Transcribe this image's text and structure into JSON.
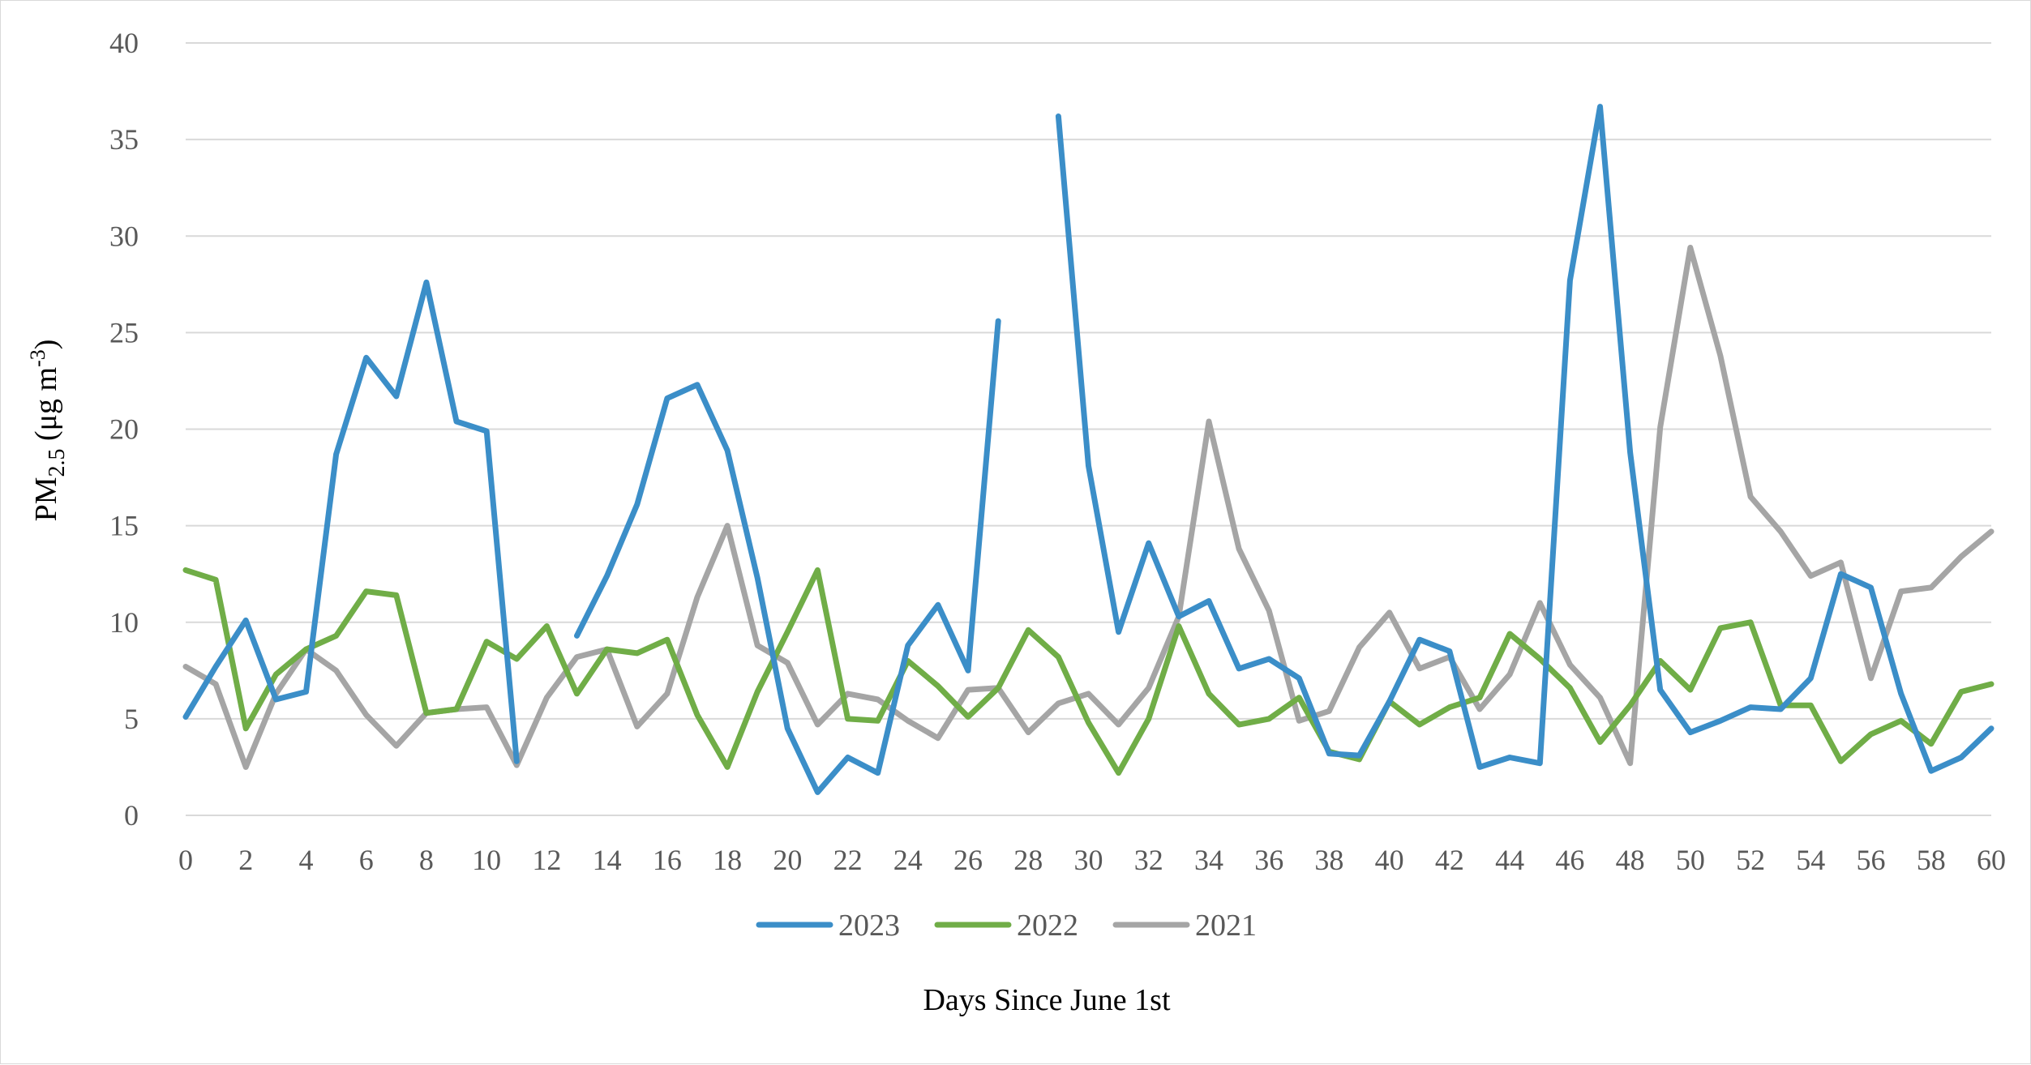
{
  "chart_data": {
    "type": "line",
    "title": "",
    "xlabel": "Days Since June 1st",
    "ylabel": "PM",
    "ylabel_sub": "2.5",
    "ylabel_units": " (μg m",
    "ylabel_sup": "-3",
    "ylabel_close": ")",
    "xlim": [
      0,
      60
    ],
    "ylim": [
      0,
      40
    ],
    "x_ticks": [
      "0",
      "2",
      "4",
      "6",
      "8",
      "10",
      "12",
      "14",
      "16",
      "18",
      "20",
      "22",
      "24",
      "26",
      "28",
      "30",
      "32",
      "34",
      "36",
      "38",
      "40",
      "42",
      "44",
      "46",
      "48",
      "50",
      "52",
      "54",
      "56",
      "58",
      "60"
    ],
    "y_ticks": [
      "0",
      "5",
      "10",
      "15",
      "20",
      "25",
      "30",
      "35",
      "40"
    ],
    "grid": true,
    "legend_position": "bottom",
    "series": [
      {
        "name": "2023",
        "color": "#3b8ec8",
        "x": [
          0,
          1,
          2,
          3,
          4,
          5,
          6,
          7,
          8,
          9,
          10,
          11,
          12,
          13,
          14,
          15,
          16,
          17,
          18,
          19,
          20,
          21,
          22,
          23,
          24,
          25,
          26,
          27,
          28,
          29,
          30,
          31,
          32,
          33,
          34,
          35,
          36,
          37,
          38,
          39,
          40,
          41,
          42,
          43,
          44,
          45,
          46,
          47,
          48,
          49,
          50,
          51,
          52,
          53,
          54,
          55,
          56,
          57,
          58,
          59,
          60
        ],
        "values": [
          5.1,
          7.7,
          10.1,
          6.0,
          6.4,
          18.7,
          23.7,
          21.7,
          27.6,
          20.4,
          19.9,
          2.8,
          null,
          9.3,
          12.4,
          16.1,
          21.6,
          22.3,
          18.9,
          12.3,
          4.5,
          1.2,
          3.0,
          2.2,
          8.8,
          10.9,
          7.5,
          25.6,
          null,
          36.2,
          18.1,
          9.5,
          14.1,
          10.3,
          11.1,
          7.6,
          8.1,
          7.1,
          3.2,
          3.1,
          5.9,
          9.1,
          8.5,
          2.5,
          3.0,
          2.7,
          27.7,
          36.7,
          18.8,
          6.5,
          4.3,
          4.9,
          5.6,
          5.5,
          7.1,
          12.5,
          11.8,
          6.3,
          2.3,
          3.0,
          4.5
        ]
      },
      {
        "name": "2022",
        "color": "#70ad47",
        "x": [
          0,
          1,
          2,
          3,
          4,
          5,
          6,
          7,
          8,
          9,
          10,
          11,
          12,
          13,
          14,
          15,
          16,
          17,
          18,
          19,
          20,
          21,
          22,
          23,
          24,
          25,
          26,
          27,
          28,
          29,
          30,
          31,
          32,
          33,
          34,
          35,
          36,
          37,
          38,
          39,
          40,
          41,
          42,
          43,
          44,
          45,
          46,
          47,
          48,
          49,
          50,
          51,
          52,
          53,
          54,
          55,
          56,
          57,
          58,
          59,
          60
        ],
        "values": [
          12.7,
          12.2,
          4.5,
          7.3,
          8.6,
          9.3,
          11.6,
          11.4,
          5.3,
          5.5,
          9.0,
          8.1,
          9.8,
          6.3,
          8.6,
          8.4,
          9.1,
          5.2,
          2.5,
          6.4,
          9.5,
          12.7,
          5.0,
          4.9,
          8.0,
          6.7,
          5.1,
          6.6,
          9.6,
          8.2,
          4.8,
          2.2,
          5.0,
          9.8,
          6.3,
          4.7,
          5.0,
          6.1,
          3.3,
          2.9,
          5.9,
          4.7,
          5.6,
          6.1,
          9.4,
          8.1,
          6.6,
          3.8,
          5.7,
          8.0,
          6.5,
          9.7,
          10.0,
          5.7,
          5.7,
          2.8,
          4.2,
          4.9,
          3.7,
          6.4,
          6.8
        ]
      },
      {
        "name": "2021",
        "color": "#a5a5a5",
        "x": [
          0,
          1,
          2,
          3,
          4,
          5,
          6,
          7,
          8,
          9,
          10,
          11,
          12,
          13,
          14,
          15,
          16,
          17,
          18,
          19,
          20,
          21,
          22,
          23,
          24,
          25,
          26,
          27,
          28,
          29,
          30,
          31,
          32,
          33,
          34,
          35,
          36,
          37,
          38,
          39,
          40,
          41,
          42,
          43,
          44,
          45,
          46,
          47,
          48,
          49,
          50,
          51,
          52,
          53,
          54,
          55,
          56,
          57,
          58,
          59,
          60
        ],
        "values": [
          7.7,
          6.8,
          2.5,
          6.3,
          8.6,
          7.5,
          5.2,
          3.6,
          5.3,
          5.5,
          5.6,
          2.6,
          6.1,
          8.2,
          8.6,
          4.6,
          6.3,
          11.3,
          15.0,
          8.8,
          7.9,
          4.7,
          6.3,
          6.0,
          4.9,
          4.0,
          6.5,
          6.6,
          4.3,
          5.8,
          6.3,
          4.7,
          6.6,
          10.3,
          20.4,
          13.8,
          10.6,
          4.9,
          5.4,
          8.7,
          10.5,
          7.6,
          8.2,
          5.5,
          7.3,
          11.0,
          7.8,
          6.1,
          2.7,
          20.1,
          29.4,
          23.8,
          16.5,
          14.7,
          12.4,
          13.1,
          7.1,
          11.6,
          11.8,
          13.4,
          14.7
        ]
      }
    ]
  }
}
